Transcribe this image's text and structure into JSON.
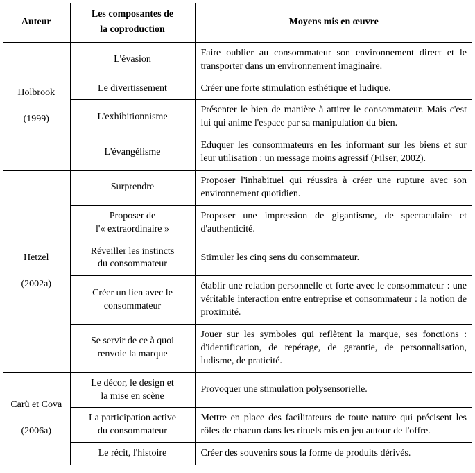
{
  "headers": {
    "author": "Auteur",
    "components_l1": "Les composantes de",
    "components_l2": "la coproduction",
    "means": "Moyens mis en œuvre"
  },
  "groups": [
    {
      "author_l1": "Holbrook",
      "author_l2": "(1999)",
      "rows": [
        {
          "comp": "L'évasion",
          "means": "Faire oublier au consommateur son environnement direct et le transporter dans un environnement imaginaire."
        },
        {
          "comp": "Le divertissement",
          "means": "Créer une forte stimulation esthétique et ludique."
        },
        {
          "comp": "L'exhibitionnisme",
          "means": "Présenter le bien de manière à attirer le consommateur. Mais c'est lui qui anime l'espace par sa manipulation du bien."
        },
        {
          "comp": "L'évangélisme",
          "means": "Eduquer les consommateurs en les informant sur les biens et sur leur utilisation : un message moins agressif (Filser, 2002)."
        }
      ]
    },
    {
      "author_l1": "Hetzel",
      "author_l2": "(2002a)",
      "rows": [
        {
          "comp": "Surprendre",
          "means": "Proposer l'inhabituel qui réussira à créer une rupture avec son environnement quotidien."
        },
        {
          "comp_l1": "Proposer de",
          "comp_l2": "l'« extraordinaire »",
          "means": "Proposer une impression de gigantisme, de spectaculaire et d'authenticité."
        },
        {
          "comp_l1": "Réveiller les instincts",
          "comp_l2": "du consommateur",
          "means": "Stimuler les cinq sens du consommateur."
        },
        {
          "comp_l1": "Créer un lien avec le",
          "comp_l2": "consommateur",
          "means": "établir une relation personnelle et forte avec le consommateur : une véritable interaction entre entreprise et consommateur : la notion de proximité."
        },
        {
          "comp_l1": "Se servir de ce à quoi",
          "comp_l2": "renvoie la marque",
          "means": "Jouer sur les symboles qui reflètent la marque, ses fonctions : d'identification, de repérage, de garantie, de personnalisation, ludisme, de praticité."
        }
      ]
    },
    {
      "author_l1": "Carù et Cova",
      "author_l2": "(2006a)",
      "rows": [
        {
          "comp_l1": "Le décor, le design et",
          "comp_l2": "la mise en scène",
          "means": "Provoquer une stimulation polysensorielle."
        },
        {
          "comp_l1": "La participation active",
          "comp_l2": "du consommateur",
          "means": "Mettre en place des facilitateurs de toute nature qui précisent les rôles de chacun dans les rituels mis en jeu autour de l'offre."
        },
        {
          "comp": "Le récit, l'histoire",
          "means": "Créer des souvenirs sous la forme de produits dérivés."
        }
      ]
    }
  ]
}
